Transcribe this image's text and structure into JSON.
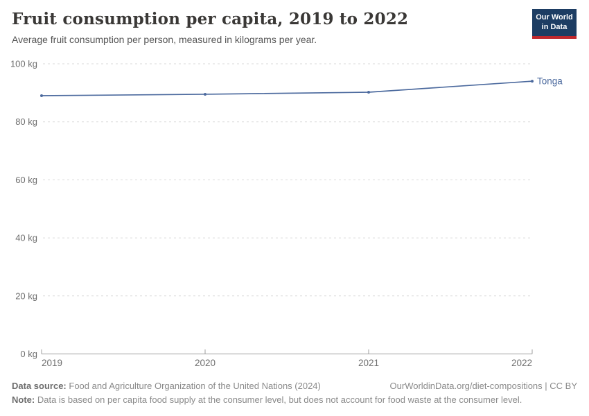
{
  "header": {
    "title": "Fruit consumption per capita, 2019 to 2022",
    "subtitle": "Average fruit consumption per person, measured in kilograms per year.",
    "logo": {
      "line1": "Our World",
      "line2": "in Data",
      "bg_color": "#1d3d63",
      "accent_color": "#c0282d"
    }
  },
  "chart_data": {
    "type": "line",
    "title": "Fruit consumption per capita, 2019 to 2022",
    "subtitle": "Average fruit consumption per person, measured in kilograms per year.",
    "x": [
      2019,
      2020,
      2021,
      2022
    ],
    "xticks": [
      2019,
      2020,
      2021,
      2022
    ],
    "series": [
      {
        "name": "Tonga",
        "values": [
          89.0,
          89.5,
          90.2,
          94.0
        ],
        "color": "#4c6a9e"
      }
    ],
    "unit": "kg",
    "ylim": [
      0,
      100
    ],
    "yticks": [
      0,
      20,
      40,
      60,
      80,
      100
    ],
    "ytick_labels": [
      "0 kg",
      "20 kg",
      "40 kg",
      "60 kg",
      "80 kg",
      "100 kg"
    ],
    "grid": "horizontal-dashed",
    "legend": "end-of-line-label",
    "colors": {
      "grid": "#dadada",
      "axis": "#9e9e9e",
      "tick_text": "#6e6e6e"
    }
  },
  "footer": {
    "datasource_label": "Data source:",
    "datasource_text": "Food and Agriculture Organization of the United Nations (2024)",
    "credit": "OurWorldinData.org/diet-compositions | CC BY",
    "note_label": "Note:",
    "note_text": "Data is based on per capita food supply at the consumer level, but does not account for food waste at the consumer level."
  }
}
